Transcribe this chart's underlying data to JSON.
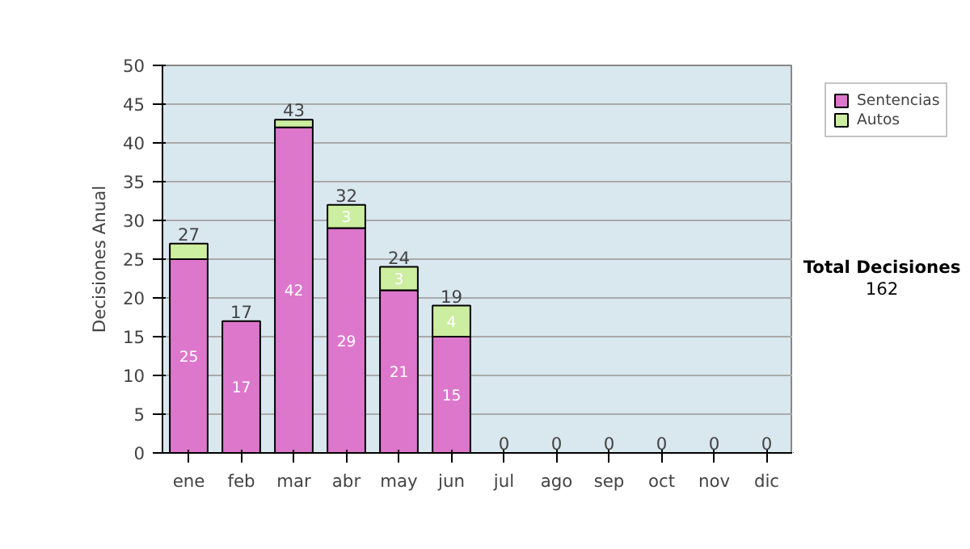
{
  "chart_data": {
    "type": "bar",
    "stacked": true,
    "ylabel": "Decisiones Anual",
    "categories": [
      "ene",
      "feb",
      "mar",
      "abr",
      "may",
      "jun",
      "jul",
      "ago",
      "sep",
      "oct",
      "nov",
      "dic"
    ],
    "series": [
      {
        "name": "Sentencias",
        "color": "#dd77cc",
        "values": [
          25,
          17,
          42,
          29,
          21,
          15,
          0,
          0,
          0,
          0,
          0,
          0
        ],
        "value_labels": [
          "25",
          "17",
          "42",
          "29",
          "21",
          "15",
          null,
          null,
          null,
          null,
          null,
          null
        ]
      },
      {
        "name": "Autos",
        "color": "#cceea0",
        "values": [
          2,
          0,
          1,
          3,
          3,
          4,
          0,
          0,
          0,
          0,
          0,
          0
        ],
        "value_labels": [
          null,
          null,
          null,
          "3",
          "3",
          "4",
          null,
          null,
          null,
          null,
          null,
          null
        ]
      }
    ],
    "totals": [
      "27",
      "17",
      "43",
      "32",
      "24",
      "19",
      "0",
      "0",
      "0",
      "0",
      "0",
      "0"
    ],
    "ylim": [
      0,
      50
    ],
    "yticks": [
      0,
      5,
      10,
      15,
      20,
      25,
      30,
      35,
      40,
      45,
      50
    ],
    "grid": "y",
    "legend": "right",
    "annotations": [
      "Total Decisiones",
      "162"
    ]
  }
}
